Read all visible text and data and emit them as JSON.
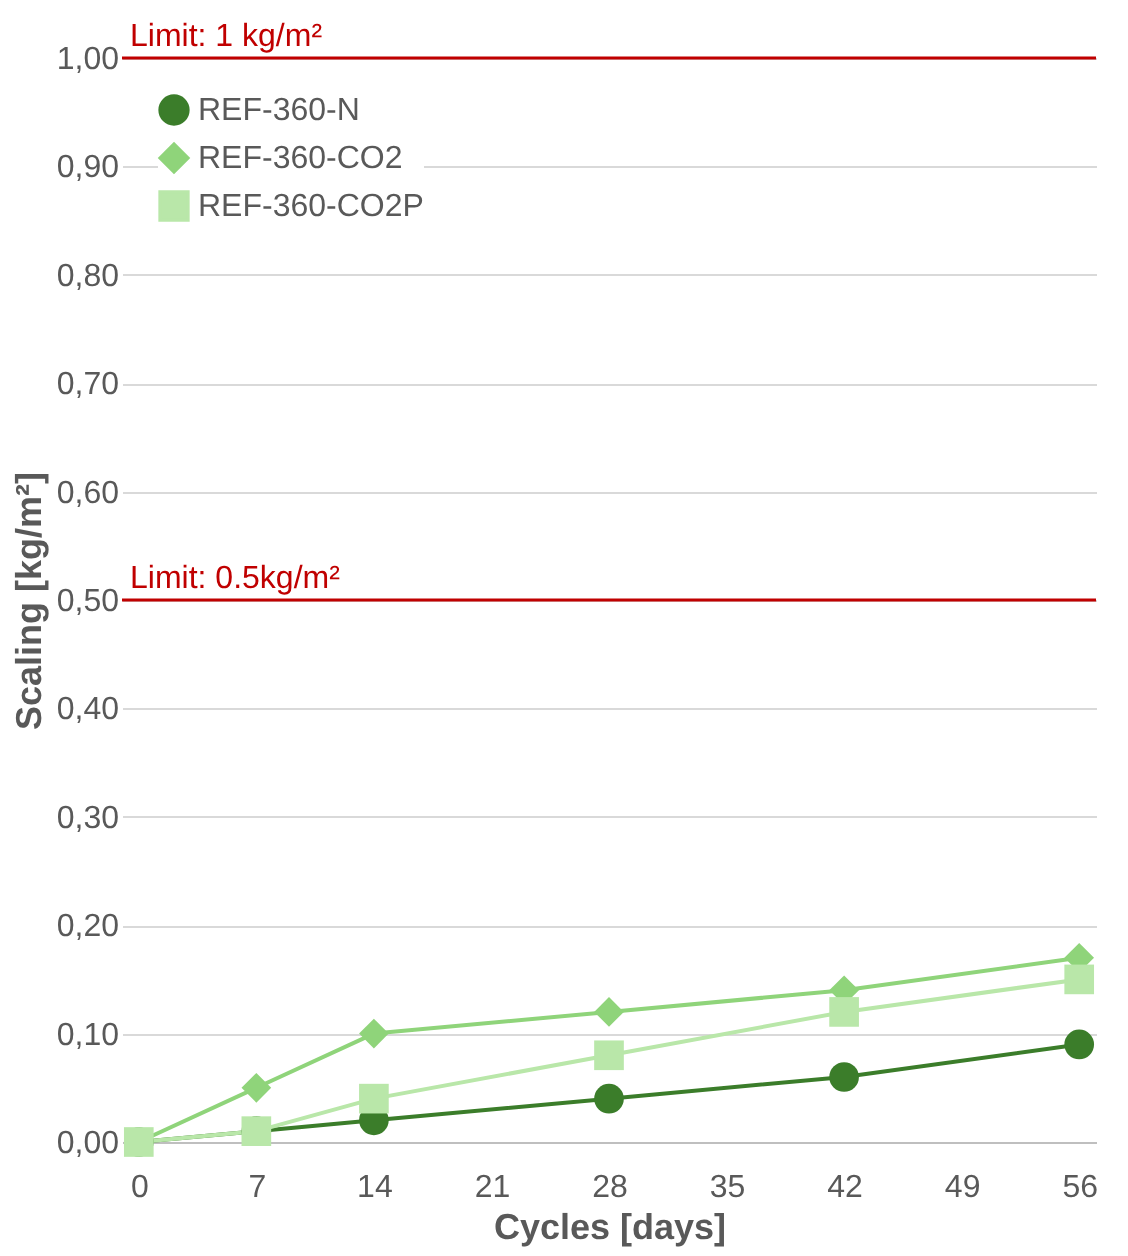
{
  "chart_data": {
    "type": "line",
    "xlabel": "Cycles [days]",
    "ylabel": "Scaling [kg/m²]",
    "x": [
      0,
      7,
      14,
      28,
      42,
      56
    ],
    "series": [
      {
        "name": "REF-360-N",
        "color": "#3b7d2a",
        "marker": "circle",
        "values": [
          0,
          0.01,
          0.02,
          0.04,
          0.06,
          0.09
        ]
      },
      {
        "name": "REF-360-CO2",
        "color": "#8fd47a",
        "marker": "diamond",
        "values": [
          0,
          0.05,
          0.1,
          0.12,
          0.14,
          0.17
        ]
      },
      {
        "name": "REF-360-CO2P",
        "color": "#b9e7a9",
        "marker": "square",
        "values": [
          0,
          0.01,
          0.04,
          0.08,
          0.12,
          0.15
        ]
      }
    ],
    "xlim": [
      -1,
      57
    ],
    "xticks": [
      0,
      7,
      14,
      21,
      28,
      35,
      42,
      49,
      56
    ],
    "ylim": [
      0,
      1
    ],
    "yticks": [
      {
        "value": 0,
        "label": "0,00"
      },
      {
        "value": 0.1,
        "label": "0,10"
      },
      {
        "value": 0.2,
        "label": "0,20"
      },
      {
        "value": 0.3,
        "label": "0,30"
      },
      {
        "value": 0.4,
        "label": "0,40"
      },
      {
        "value": 0.5,
        "label": "0,50"
      },
      {
        "value": 0.6,
        "label": "0,60"
      },
      {
        "value": 0.7,
        "label": "0,70"
      },
      {
        "value": 0.8,
        "label": "0,80"
      },
      {
        "value": 0.9,
        "label": "0,90"
      },
      {
        "value": 1,
        "label": "1,00"
      }
    ],
    "ref_lines": [
      {
        "axis": "y",
        "value": 1,
        "label": "Limit: 1 kg/m²",
        "color": "#c00000"
      },
      {
        "axis": "y",
        "value": 0.5,
        "label": "Limit: 0.5kg/m²",
        "color": "#c00000"
      }
    ],
    "grid": "y",
    "legend": "top left",
    "line_style": "solid"
  }
}
